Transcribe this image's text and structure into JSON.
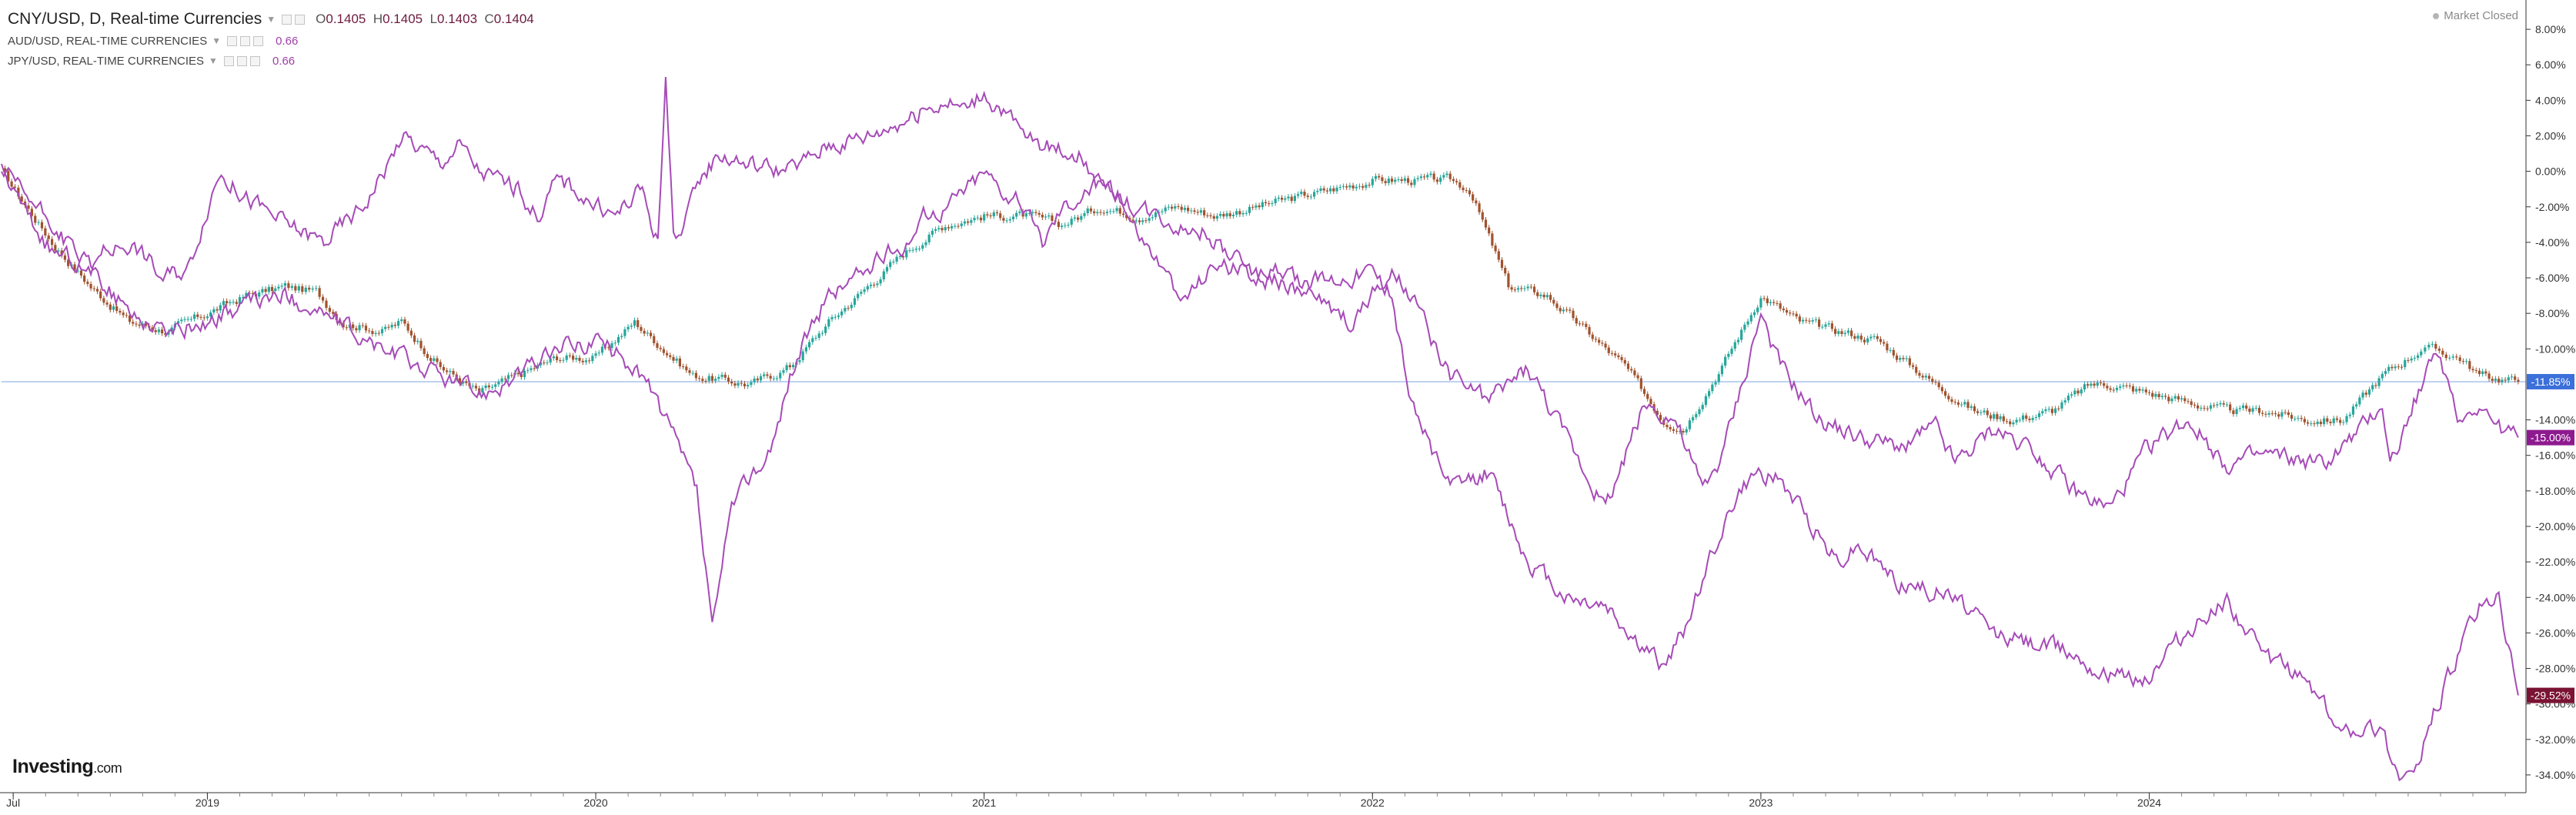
{
  "header": {
    "main_symbol": "CNY/USD, D, Real-time Currencies",
    "ohlc": {
      "open": "0.1405",
      "high": "0.1405",
      "low": "0.1403",
      "close": "0.1404"
    },
    "ohlc_keys": {
      "open": "O",
      "high": "H",
      "low": "L",
      "close": "C"
    },
    "compare": [
      {
        "symbol": "AUD/USD, REAL-TIME CURRENCIES",
        "value": "0.66"
      },
      {
        "symbol": "JPY/USD, REAL-TIME CURRENCIES",
        "value": "0.66"
      }
    ],
    "market_status": "Market Closed"
  },
  "logo": {
    "text": "Investing",
    "suffix": ".com"
  },
  "colors": {
    "candle_up": "#26a69a",
    "candle_down": "#a0522d",
    "compare_line": "#a64bb7",
    "ref_line": "#a9c4ec",
    "badge_blue": "#3b6fd9",
    "badge_purple": "#8e1a8f",
    "badge_darkred": "#7a1334",
    "axis": "#333333"
  },
  "chart_data": {
    "type": "line",
    "y_unit": "% change",
    "ylim": [
      -35,
      9
    ],
    "y_ticks": [
      8,
      6,
      4,
      2,
      0,
      -2,
      -4,
      -6,
      -8,
      -10,
      -14,
      -16,
      -18,
      -20,
      -22,
      -24,
      -26,
      -28,
      -30,
      -32,
      -34
    ],
    "y_tick_labels": [
      "8.00%",
      "6.00%",
      "4.00%",
      "2.00%",
      "0.00%",
      "-2.00%",
      "-4.00%",
      "-6.00%",
      "-8.00%",
      "-10.00%",
      "-14.00%",
      "-16.00%",
      "-18.00%",
      "-20.00%",
      "-22.00%",
      "-24.00%",
      "-26.00%",
      "-28.00%",
      "-30.00%",
      "-32.00%",
      "-34.00%"
    ],
    "xlim": [
      2018.47,
      2024.97
    ],
    "x_ticks": [
      2018.5,
      2019.0,
      2020.0,
      2021.0,
      2022.0,
      2023.0,
      2024.0
    ],
    "x_tick_labels": [
      "Jul",
      "2019",
      "2020",
      "2021",
      "2022",
      "2023",
      "2024"
    ],
    "reference_line": -11.85,
    "grid": false,
    "series": [
      {
        "style": "candles",
        "x": [
          2018.47,
          2018.6,
          2018.7,
          2018.8,
          2018.9,
          2019.0,
          2019.1,
          2019.2,
          2019.28,
          2019.35,
          2019.45,
          2019.5,
          2019.6,
          2019.7,
          2019.8,
          2019.9,
          2020.0,
          2020.1,
          2020.25,
          2020.4,
          2020.5,
          2020.6,
          2020.7,
          2020.8,
          2020.9,
          2021.0,
          2021.1,
          2021.2,
          2021.3,
          2021.4,
          2021.5,
          2021.6,
          2021.7,
          2021.8,
          2021.9,
          2022.0,
          2022.1,
          2022.2,
          2022.25,
          2022.35,
          2022.45,
          2022.55,
          2022.65,
          2022.75,
          2022.8,
          2022.9,
          2023.0,
          2023.1,
          2023.2,
          2023.3,
          2023.45,
          2023.55,
          2023.65,
          2023.75,
          2023.85,
          2023.9,
          2024.0,
          2024.1,
          2024.2,
          2024.3,
          2024.4,
          2024.5,
          2024.6,
          2024.7,
          2024.72,
          2024.8,
          2024.85,
          2024.95
        ],
        "values": [
          0.0,
          -4.0,
          -6.5,
          -8.5,
          -9.0,
          -8.0,
          -7.0,
          -6.5,
          -6.8,
          -8.5,
          -9.0,
          -8.5,
          -11.0,
          -12.5,
          -11.5,
          -10.5,
          -10.5,
          -8.5,
          -11.5,
          -12.0,
          -11.0,
          -8.5,
          -6.5,
          -4.5,
          -3.0,
          -2.5,
          -2.5,
          -3.0,
          -2.0,
          -2.5,
          -2.0,
          -2.5,
          -2.0,
          -1.5,
          -1.0,
          -0.5,
          -0.5,
          -0.5,
          -1.0,
          -6.5,
          -7.0,
          -9.0,
          -11.0,
          -14.0,
          -14.5,
          -11.0,
          -7.0,
          -8.5,
          -9.0,
          -9.5,
          -12.0,
          -13.5,
          -14.0,
          -13.5,
          -12.0,
          -12.0,
          -12.5,
          -13.0,
          -13.5,
          -13.5,
          -14.0,
          -14.0,
          -11.5,
          -10.0,
          -10.0,
          -10.5,
          -11.5,
          -11.85
        ]
      },
      {
        "style": "line",
        "x": [
          2018.47,
          2018.55,
          2018.6,
          2018.65,
          2018.7,
          2018.72,
          2018.8,
          2018.85,
          2018.88,
          2018.95,
          2019.0,
          2019.03,
          2019.1,
          2019.2,
          2019.3,
          2019.4,
          2019.48,
          2019.5,
          2019.6,
          2019.65,
          2019.7,
          2019.8,
          2019.85,
          2019.9,
          2019.95,
          2020.0,
          2020.05,
          2020.12,
          2020.16,
          2020.18,
          2020.2,
          2020.22,
          2020.28,
          2020.32,
          2020.38,
          2020.5,
          2020.6,
          2020.7,
          2020.8,
          2020.9,
          2020.95,
          2021.0,
          2021.02,
          2021.05,
          2021.1,
          2021.15,
          2021.25,
          2021.3,
          2021.35,
          2021.45,
          2021.5,
          2021.58,
          2021.62,
          2021.7,
          2021.75,
          2021.8,
          2021.85,
          2021.9,
          2021.95,
          2022.0,
          2022.05,
          2022.08,
          2022.12,
          2022.2,
          2022.3,
          2022.4,
          2022.5,
          2022.6,
          2022.7,
          2022.78,
          2022.85,
          2022.9,
          2022.97,
          2023.0,
          2023.05,
          2023.15,
          2023.25,
          2023.35,
          2023.45,
          2023.5,
          2023.6,
          2023.7,
          2023.8,
          2023.9,
          2024.0,
          2024.1,
          2024.2,
          2024.3,
          2024.45,
          2024.55,
          2024.6,
          2024.62,
          2024.65,
          2024.7,
          2024.72,
          2024.75,
          2024.8,
          2024.85,
          2024.9,
          2024.95
        ],
        "values": [
          0.0,
          -3.0,
          -4.5,
          -5.0,
          -6.0,
          -4.5,
          -4.0,
          -5.0,
          -6.0,
          -5.5,
          -2.0,
          0.0,
          -1.5,
          -3.0,
          -4.0,
          -2.0,
          1.0,
          2.0,
          0.5,
          1.5,
          0.0,
          -1.0,
          -2.5,
          -0.5,
          -1.0,
          -2.0,
          -2.5,
          -1.0,
          -4.0,
          5.0,
          -3.0,
          -3.5,
          0.0,
          1.0,
          0.5,
          0.0,
          1.5,
          2.0,
          3.0,
          4.0,
          3.5,
          4.5,
          4.0,
          3.5,
          2.0,
          1.5,
          1.0,
          -1.0,
          -1.5,
          -2.5,
          -3.0,
          -3.5,
          -4.5,
          -6.0,
          -5.5,
          -6.0,
          -7.0,
          -8.0,
          -8.5,
          -7.0,
          -6.0,
          -6.5,
          -8.0,
          -11.5,
          -13.0,
          -11.0,
          -15.0,
          -19.0,
          -13.0,
          -14.0,
          -18.0,
          -16.0,
          -10.5,
          -8.0,
          -11.0,
          -14.0,
          -15.0,
          -15.5,
          -14.5,
          -16.5,
          -14.5,
          -15.5,
          -18.0,
          -19.0,
          -15.5,
          -14.0,
          -16.5,
          -16.0,
          -16.5,
          -14.5,
          -13.0,
          -16.5,
          -15.0,
          -12.0,
          -11.0,
          -10.5,
          -14.0,
          -13.0,
          -14.5,
          -15.0
        ]
      },
      {
        "style": "line",
        "x": [
          2018.47,
          2018.6,
          2018.7,
          2018.8,
          2018.9,
          2019.0,
          2019.1,
          2019.2,
          2019.3,
          2019.4,
          2019.5,
          2019.6,
          2019.7,
          2019.8,
          2019.9,
          2020.0,
          2020.1,
          2020.16,
          2020.2,
          2020.22,
          2020.26,
          2020.3,
          2020.35,
          2020.4,
          2020.45,
          2020.5,
          2020.55,
          2020.6,
          2020.7,
          2020.8,
          2020.85,
          2020.9,
          2021.0,
          2021.05,
          2021.1,
          2021.15,
          2021.2,
          2021.3,
          2021.35,
          2021.4,
          2021.45,
          2021.5,
          2021.6,
          2021.7,
          2021.8,
          2021.9,
          2022.0,
          2022.05,
          2022.1,
          2022.2,
          2022.3,
          2022.4,
          2022.5,
          2022.6,
          2022.7,
          2022.75,
          2022.8,
          2022.85,
          2022.9,
          2022.95,
          2023.0,
          2023.05,
          2023.1,
          2023.2,
          2023.25,
          2023.35,
          2023.5,
          2023.6,
          2023.7,
          2023.8,
          2023.9,
          2024.0,
          2024.05,
          2024.1,
          2024.2,
          2024.3,
          2024.35,
          2024.4,
          2024.45,
          2024.5,
          2024.55,
          2024.6,
          2024.62,
          2024.65,
          2024.7,
          2024.72,
          2024.75,
          2024.8,
          2024.85,
          2024.9,
          2024.95
        ],
        "values": [
          0.0,
          -3.0,
          -5.5,
          -8.0,
          -9.0,
          -8.5,
          -7.5,
          -7.0,
          -8.0,
          -9.5,
          -10.5,
          -11.5,
          -12.5,
          -11.5,
          -10.0,
          -9.5,
          -11.0,
          -13.0,
          -15.0,
          -16.0,
          -18.0,
          -26.0,
          -19.0,
          -17.0,
          -16.0,
          -11.5,
          -9.0,
          -7.0,
          -5.5,
          -4.0,
          -2.5,
          -2.0,
          0.0,
          -1.0,
          -2.0,
          -4.0,
          -2.0,
          -0.5,
          -1.5,
          -3.5,
          -5.0,
          -7.5,
          -5.0,
          -6.0,
          -6.5,
          -6.0,
          -5.5,
          -7.0,
          -13.0,
          -18.0,
          -17.0,
          -22.0,
          -24.0,
          -24.5,
          -27.0,
          -28.0,
          -26.0,
          -23.0,
          -20.0,
          -18.0,
          -17.0,
          -17.5,
          -19.0,
          -22.0,
          -21.0,
          -23.0,
          -24.0,
          -26.0,
          -26.5,
          -27.0,
          -28.5,
          -28.5,
          -27.0,
          -26.0,
          -24.0,
          -27.5,
          -28.0,
          -28.5,
          -30.0,
          -32.0,
          -31.0,
          -31.5,
          -33.0,
          -34.0,
          -33.5,
          -31.0,
          -29.5,
          -27.0,
          -24.5,
          -24.0,
          -29.52
        ]
      }
    ],
    "last_value_labels": [
      "-11.85%",
      "-15.00%",
      "-29.52%"
    ]
  }
}
